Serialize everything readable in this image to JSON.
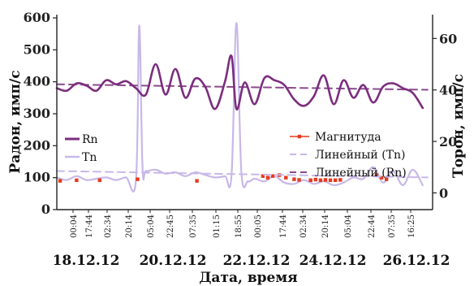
{
  "chart_data": {
    "type": "line",
    "xlabel": "Дата, время",
    "ylabel_left": "Радон, имп/с",
    "ylabel_right": "Торон, имп/с",
    "ylim_left": [
      0,
      600
    ],
    "ylim_right": [
      -6.5,
      68
    ],
    "yticks_left": [
      "0",
      "100",
      "200",
      "300",
      "400",
      "500",
      "600"
    ],
    "yticks_right": [
      "0",
      "20",
      "40",
      "60"
    ],
    "time_ticks": [
      "00:04",
      "17:44",
      "02:34",
      "20:14",
      "05:04",
      "22:45",
      "07:35",
      "01:15",
      "18:55",
      "00:05",
      "17:44",
      "02:34",
      "20:14",
      "05:04",
      "22:44",
      "07:35",
      "16:25"
    ],
    "date_labels": [
      "18.12.12",
      "20.12.12",
      "22.12.12",
      "24.12.12",
      "26.12.12"
    ],
    "x_range": [
      "18.12.12 00:00",
      "27.12.12 12:00"
    ],
    "legend_left": [
      "Rn",
      "Tn"
    ],
    "legend_right": [
      "Магнитуда",
      "Линейный (Tn)",
      "Линейный (Rn)"
    ],
    "colors": {
      "rn": "#7b2d7e",
      "tn": "#c8b8e8",
      "magnitude": "#e53a1e",
      "lin_tn": "#c8b8e8",
      "lin_rn": "#8a4a8c"
    },
    "series": [
      {
        "name": "Rn",
        "axis": "left",
        "points": [
          [
            "2012-12-18 00:00",
            380
          ],
          [
            "2012-12-18 06:00",
            372
          ],
          [
            "2012-12-18 12:00",
            395
          ],
          [
            "2012-12-18 18:00",
            388
          ],
          [
            "2012-12-19 00:00",
            372
          ],
          [
            "2012-12-19 06:00",
            405
          ],
          [
            "2012-12-19 12:00",
            392
          ],
          [
            "2012-12-19 18:00",
            402
          ],
          [
            "2012-12-20 00:00",
            380
          ],
          [
            "2012-12-20 06:00",
            360
          ],
          [
            "2012-12-20 12:00",
            455
          ],
          [
            "2012-12-20 18:00",
            360
          ],
          [
            "2012-12-21 00:00",
            440
          ],
          [
            "2012-12-21 06:00",
            350
          ],
          [
            "2012-12-21 12:00",
            410
          ],
          [
            "2012-12-21 18:00",
            385
          ],
          [
            "2012-12-22 00:00",
            315
          ],
          [
            "2012-12-22 06:00",
            400
          ],
          [
            "2012-12-22 10:00",
            480
          ],
          [
            "2012-12-22 13:00",
            315
          ],
          [
            "2012-12-22 18:00",
            398
          ],
          [
            "2012-12-23 00:00",
            330
          ],
          [
            "2012-12-23 06:00",
            412
          ],
          [
            "2012-12-23 12:00",
            405
          ],
          [
            "2012-12-23 18:00",
            390
          ],
          [
            "2012-12-24 00:00",
            345
          ],
          [
            "2012-12-24 06:00",
            325
          ],
          [
            "2012-12-24 12:00",
            355
          ],
          [
            "2012-12-24 18:00",
            420
          ],
          [
            "2012-12-25 00:00",
            330
          ],
          [
            "2012-12-25 06:00",
            405
          ],
          [
            "2012-12-25 12:00",
            350
          ],
          [
            "2012-12-25 18:00",
            390
          ],
          [
            "2012-12-26 00:00",
            335
          ],
          [
            "2012-12-26 06:00",
            385
          ],
          [
            "2012-12-26 12:00",
            395
          ],
          [
            "2012-12-26 18:00",
            380
          ],
          [
            "2012-12-27 00:00",
            365
          ],
          [
            "2012-12-27 06:00",
            318
          ]
        ]
      },
      {
        "name": "Tn",
        "axis": "right",
        "points": [
          [
            "2012-12-18 00:00",
            6
          ],
          [
            "2012-12-18 06:00",
            5
          ],
          [
            "2012-12-18 12:00",
            6.5
          ],
          [
            "2012-12-18 18:00",
            5
          ],
          [
            "2012-12-19 00:00",
            5.5
          ],
          [
            "2012-12-19 06:00",
            6
          ],
          [
            "2012-12-19 12:00",
            5
          ],
          [
            "2012-12-19 18:00",
            6
          ],
          [
            "2012-12-20 00:00",
            5
          ],
          [
            "2012-12-20 02:00",
            65
          ],
          [
            "2012-12-20 04:00",
            10
          ],
          [
            "2012-12-20 06:00",
            8.5
          ],
          [
            "2012-12-20 12:00",
            9
          ],
          [
            "2012-12-20 18:00",
            7.5
          ],
          [
            "2012-12-21 00:00",
            8
          ],
          [
            "2012-12-21 06:00",
            6.5
          ],
          [
            "2012-12-21 12:00",
            8
          ],
          [
            "2012-12-21 18:00",
            7
          ],
          [
            "2012-12-22 00:00",
            6
          ],
          [
            "2012-12-22 06:00",
            6.5
          ],
          [
            "2012-12-22 10:00",
            7
          ],
          [
            "2012-12-22 13:00",
            66
          ],
          [
            "2012-12-22 16:00",
            8
          ],
          [
            "2012-12-22 20:00",
            4.5
          ],
          [
            "2012-12-23 00:00",
            5.5
          ],
          [
            "2012-12-23 06:00",
            4.5
          ],
          [
            "2012-12-23 12:00",
            6.5
          ],
          [
            "2012-12-23 18:00",
            4
          ],
          [
            "2012-12-24 00:00",
            3.5
          ],
          [
            "2012-12-24 06:00",
            5
          ],
          [
            "2012-12-24 12:00",
            3.5
          ],
          [
            "2012-12-24 18:00",
            4.5
          ],
          [
            "2012-12-25 00:00",
            3
          ],
          [
            "2012-12-25 06:00",
            4
          ],
          [
            "2012-12-25 12:00",
            6
          ],
          [
            "2012-12-25 18:00",
            5.5
          ],
          [
            "2012-12-26 00:00",
            10
          ],
          [
            "2012-12-26 06:00",
            4
          ],
          [
            "2012-12-26 12:00",
            8.5
          ],
          [
            "2012-12-26 18:00",
            3
          ],
          [
            "2012-12-27 00:00",
            9
          ],
          [
            "2012-12-27 06:00",
            3
          ]
        ]
      },
      {
        "name": "Магнитуда",
        "axis": "left",
        "style": "markers",
        "points": [
          [
            "2012-12-18 02:00",
            90
          ],
          [
            "2012-12-18 12:00",
            92
          ],
          [
            "2012-12-19 02:00",
            92
          ],
          [
            "2012-12-20 01:00",
            95
          ],
          [
            "2012-12-21 13:00",
            90
          ],
          [
            "2012-12-23 05:00",
            105
          ],
          [
            "2012-12-23 08:00",
            100
          ],
          [
            "2012-12-23 11:00",
            105
          ],
          [
            "2012-12-23 15:00",
            108
          ],
          [
            "2012-12-23 19:00",
            100
          ],
          [
            "2012-12-24 00:00",
            95
          ],
          [
            "2012-12-24 03:00",
            93
          ],
          [
            "2012-12-24 10:00",
            92
          ],
          [
            "2012-12-24 13:00",
            94
          ],
          [
            "2012-12-24 16:00",
            92
          ],
          [
            "2012-12-24 19:00",
            93
          ],
          [
            "2012-12-24 22:00",
            92
          ],
          [
            "2012-12-25 01:00",
            92
          ],
          [
            "2012-12-25 04:00",
            93
          ],
          [
            "2012-12-26 02:00",
            108
          ],
          [
            "2012-12-26 05:00",
            100
          ],
          [
            "2012-12-26 08:00",
            95
          ]
        ]
      },
      {
        "name": "Линейный (Tn)",
        "axis": "right",
        "style": "dashed",
        "points": [
          [
            "2012-12-18 00:00",
            8.5
          ],
          [
            "2012-12-27 09:00",
            6
          ]
        ]
      },
      {
        "name": "Линейный (Rn)",
        "axis": "left",
        "style": "dashed",
        "points": [
          [
            "2012-12-18 00:00",
            392
          ],
          [
            "2012-12-27 09:00",
            375
          ]
        ]
      }
    ]
  }
}
